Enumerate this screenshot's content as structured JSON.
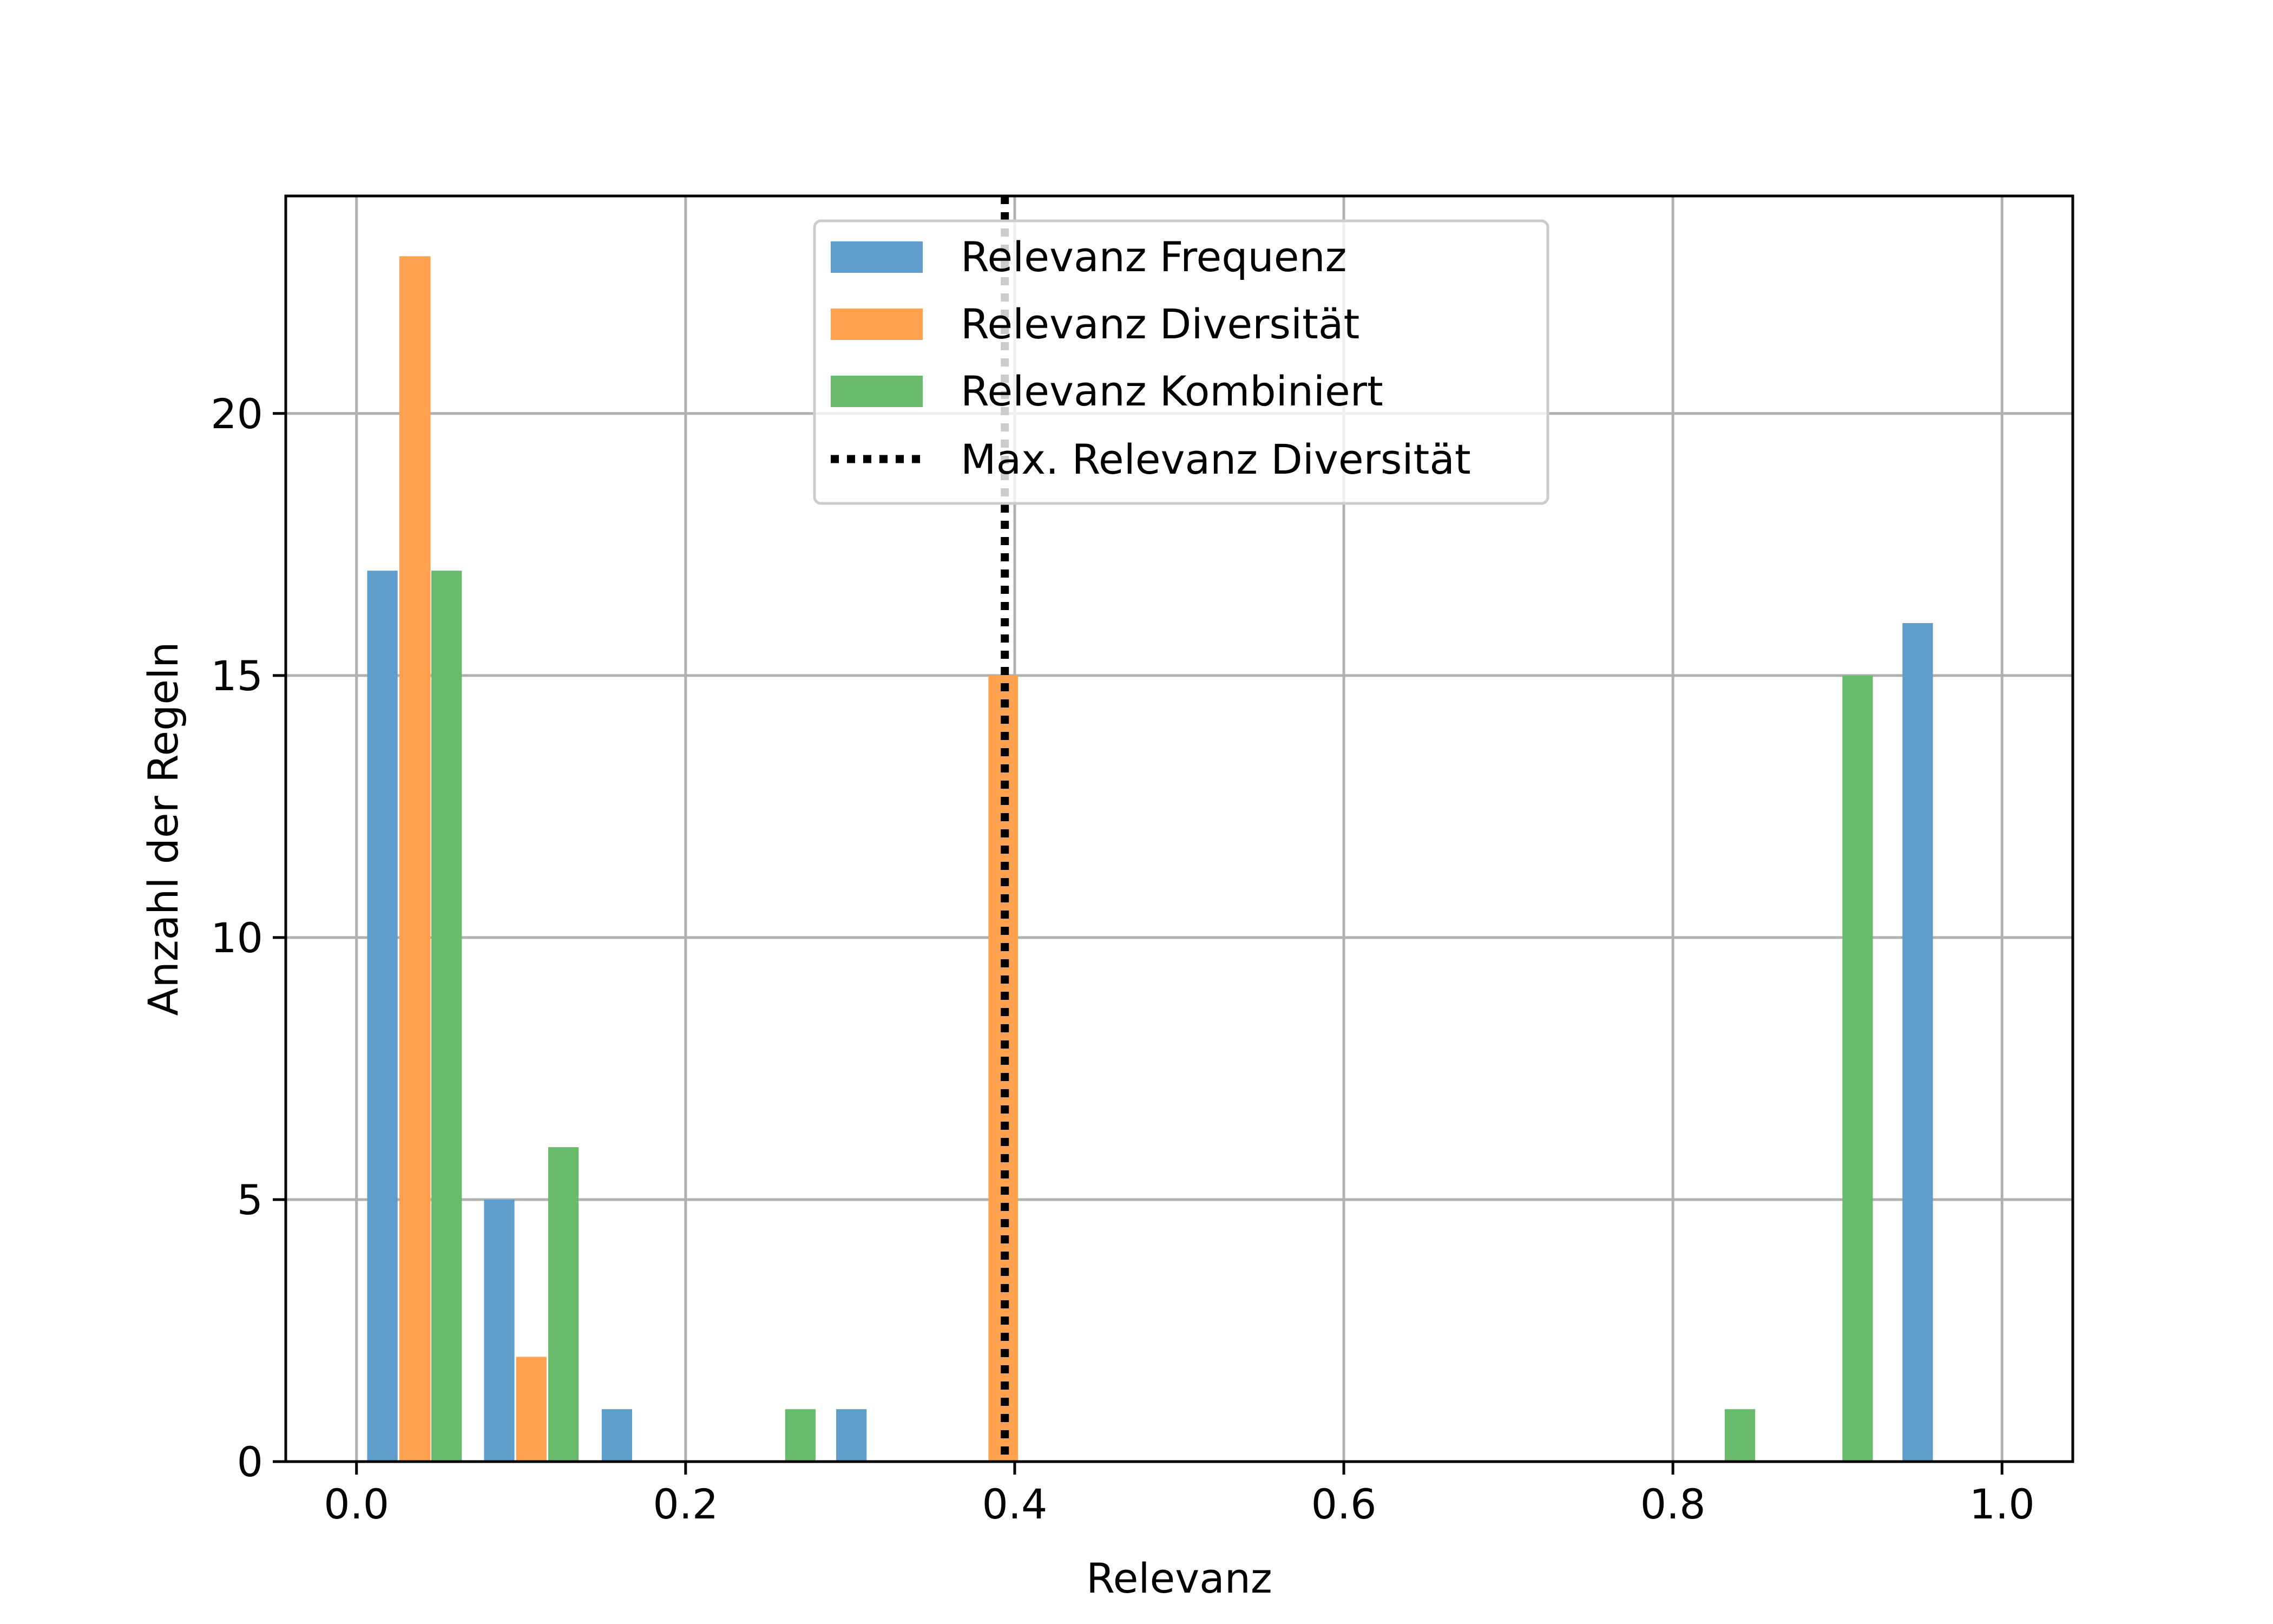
{
  "chart_data": {
    "type": "bar",
    "title": "",
    "xlabel": "Relevanz",
    "ylabel": "Anzahl der Regeln",
    "xlim": [
      -0.043,
      1.043
    ],
    "ylim": [
      0,
      24.15
    ],
    "grid": true,
    "legend_position": "top-center",
    "x_ticks": [
      0.0,
      0.2,
      0.4,
      0.6,
      0.8,
      1.0
    ],
    "x_tick_labels": [
      "0.0",
      "0.2",
      "0.4",
      "0.6",
      "0.8",
      "1.0"
    ],
    "y_ticks": [
      0,
      5,
      10,
      15,
      20
    ],
    "y_tick_labels": [
      "0",
      "5",
      "10",
      "15",
      "20"
    ],
    "series": [
      {
        "name": "Relevanz Frequenz",
        "color": "#5f9ecb",
        "bars": [
          {
            "x_start": 0.0065,
            "x_end": 0.025,
            "value": 17
          },
          {
            "x_start": 0.0775,
            "x_end": 0.096,
            "value": 5
          },
          {
            "x_start": 0.149,
            "x_end": 0.1675,
            "value": 1
          },
          {
            "x_start": 0.2915,
            "x_end": 0.31,
            "value": 1
          },
          {
            "x_start": 0.9395,
            "x_end": 0.958,
            "value": 16
          }
        ]
      },
      {
        "name": "Relevanz Diversität",
        "color": "#ffa24f",
        "bars": [
          {
            "x_start": 0.026,
            "x_end": 0.045,
            "value": 23
          },
          {
            "x_start": 0.097,
            "x_end": 0.1155,
            "value": 2
          },
          {
            "x_start": 0.384,
            "x_end": 0.402,
            "value": 15
          }
        ]
      },
      {
        "name": "Relevanz Kombiniert",
        "color": "#69bb6b",
        "bars": [
          {
            "x_start": 0.0455,
            "x_end": 0.064,
            "value": 17
          },
          {
            "x_start": 0.1165,
            "x_end": 0.135,
            "value": 6
          },
          {
            "x_start": 0.2605,
            "x_end": 0.279,
            "value": 1
          },
          {
            "x_start": 0.8315,
            "x_end": 0.85,
            "value": 1
          },
          {
            "x_start": 0.903,
            "x_end": 0.9215,
            "value": 15
          }
        ]
      }
    ],
    "reference_lines": [
      {
        "name": "Max. Relevanz Diversität",
        "orientation": "vertical",
        "x": 0.394,
        "style": "dotted",
        "color": "#000000"
      }
    ],
    "legend": [
      {
        "label": "Relevanz Frequenz",
        "kind": "patch",
        "color": "#5f9ecb"
      },
      {
        "label": "Relevanz Diversität",
        "kind": "patch",
        "color": "#ffa24f"
      },
      {
        "label": "Relevanz Kombiniert",
        "kind": "patch",
        "color": "#69bb6b"
      },
      {
        "label": "Max. Relevanz Diversität",
        "kind": "dotted-line",
        "color": "#000000"
      }
    ]
  }
}
